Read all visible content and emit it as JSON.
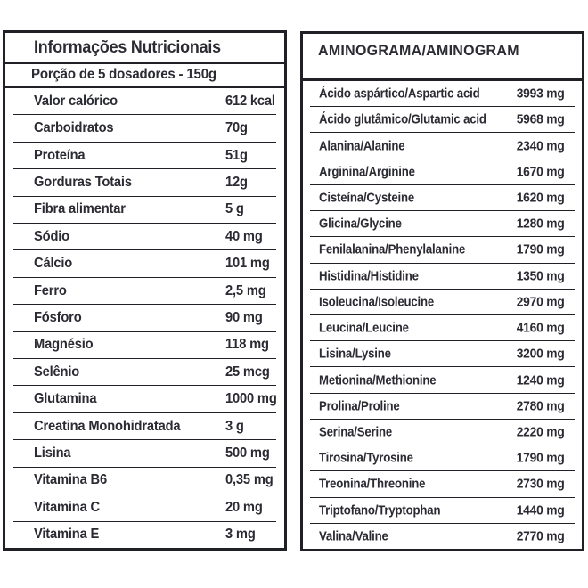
{
  "left_table": {
    "title": "Informações Nutricionais",
    "serving": "Porção de 5 dosadores - 150g",
    "rows": [
      {
        "label": "Valor calórico",
        "value": "612 kcal"
      },
      {
        "label": "Carboidratos",
        "value": "70g"
      },
      {
        "label": "Proteína",
        "value": "51g"
      },
      {
        "label": "Gorduras Totais",
        "value": "12g"
      },
      {
        "label": "Fibra alimentar",
        "value": "5 g"
      },
      {
        "label": "Sódio",
        "value": "40 mg"
      },
      {
        "label": "Cálcio",
        "value": "101 mg"
      },
      {
        "label": "Ferro",
        "value": "2,5 mg"
      },
      {
        "label": "Fósforo",
        "value": "90 mg"
      },
      {
        "label": "Magnésio",
        "value": "118 mg"
      },
      {
        "label": "Selênio",
        "value": "25 mcg"
      },
      {
        "label": "Glutamina",
        "value": "1000 mg"
      },
      {
        "label": "Creatina Monohidratada",
        "value": "3 g"
      },
      {
        "label": "Lisina",
        "value": "500 mg"
      },
      {
        "label": "Vitamina B6",
        "value": "0,35 mg"
      },
      {
        "label": "Vitamina C",
        "value": "20 mg"
      },
      {
        "label": "Vitamina E",
        "value": "3 mg"
      }
    ]
  },
  "right_table": {
    "title": "AMINOGRAMA/AMINOGRAM",
    "rows": [
      {
        "label": "Ácido aspártico/Aspartic acid",
        "value": "3993 mg"
      },
      {
        "label": "Ácido glutâmico/Glutamic acid",
        "value": "5968 mg"
      },
      {
        "label": "Alanina/Alanine",
        "value": "2340 mg"
      },
      {
        "label": "Arginina/Arginine",
        "value": "1670 mg"
      },
      {
        "label": "Cisteína/Cysteine",
        "value": "1620 mg"
      },
      {
        "label": "Glicina/Glycine",
        "value": "1280 mg"
      },
      {
        "label": "Fenilalanina/Phenylalanine",
        "value": "1790 mg"
      },
      {
        "label": "Histidina/Histidine",
        "value": "1350 mg"
      },
      {
        "label": "Isoleucina/Isoleucine",
        "value": "2970 mg"
      },
      {
        "label": "Leucina/Leucine",
        "value": "4160 mg"
      },
      {
        "label": "Lisina/Lysine",
        "value": "3200 mg"
      },
      {
        "label": "Metionina/Methionine",
        "value": "1240 mg"
      },
      {
        "label": "Prolina/Proline",
        "value": "2780 mg"
      },
      {
        "label": "Serina/Serine",
        "value": "2220 mg"
      },
      {
        "label": "Tirosina/Tyrosine",
        "value": "1790 mg"
      },
      {
        "label": "Treonina/Threonine",
        "value": "2730 mg"
      },
      {
        "label": "Triptofano/Tryptophan",
        "value": "1440 mg"
      },
      {
        "label": "Valina/Valine",
        "value": "2770 mg"
      }
    ]
  },
  "colors": {
    "text": "#2b2b33",
    "border": "#202027",
    "background": "#ffffff"
  }
}
